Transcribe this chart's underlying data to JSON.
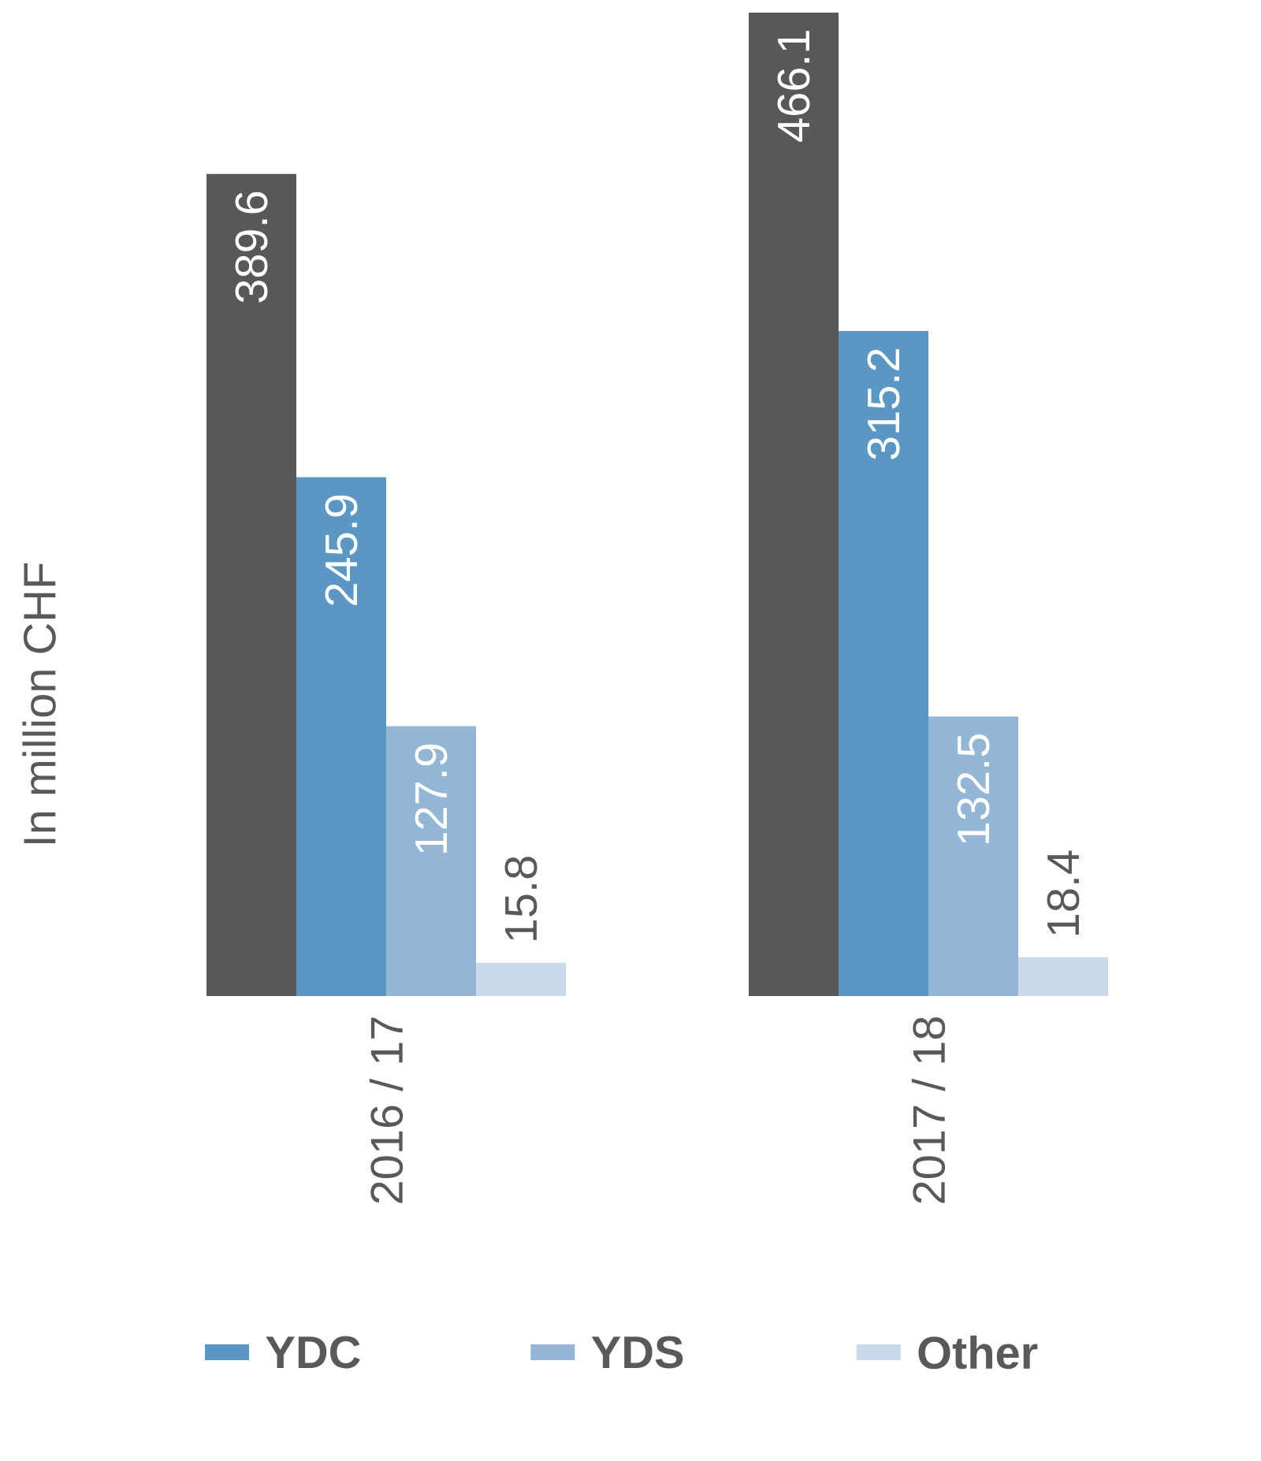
{
  "chart_data": {
    "type": "bar",
    "ylabel": "In million CHF",
    "categories": [
      "2016 / 17",
      "2017 / 18"
    ],
    "series": [
      {
        "color": "#58585a",
        "values": [
          389.6,
          466.1
        ]
      },
      {
        "name": "YDC",
        "color": "#5b97c4",
        "values": [
          245.9,
          315.2
        ]
      },
      {
        "name": "YDS",
        "color": "#93b6d6",
        "values": [
          127.9,
          132.5
        ]
      },
      {
        "name": "Other",
        "color": "#c8d9ea",
        "values": [
          15.8,
          18.4
        ]
      }
    ],
    "data_labels": true,
    "legend": "bottom"
  }
}
